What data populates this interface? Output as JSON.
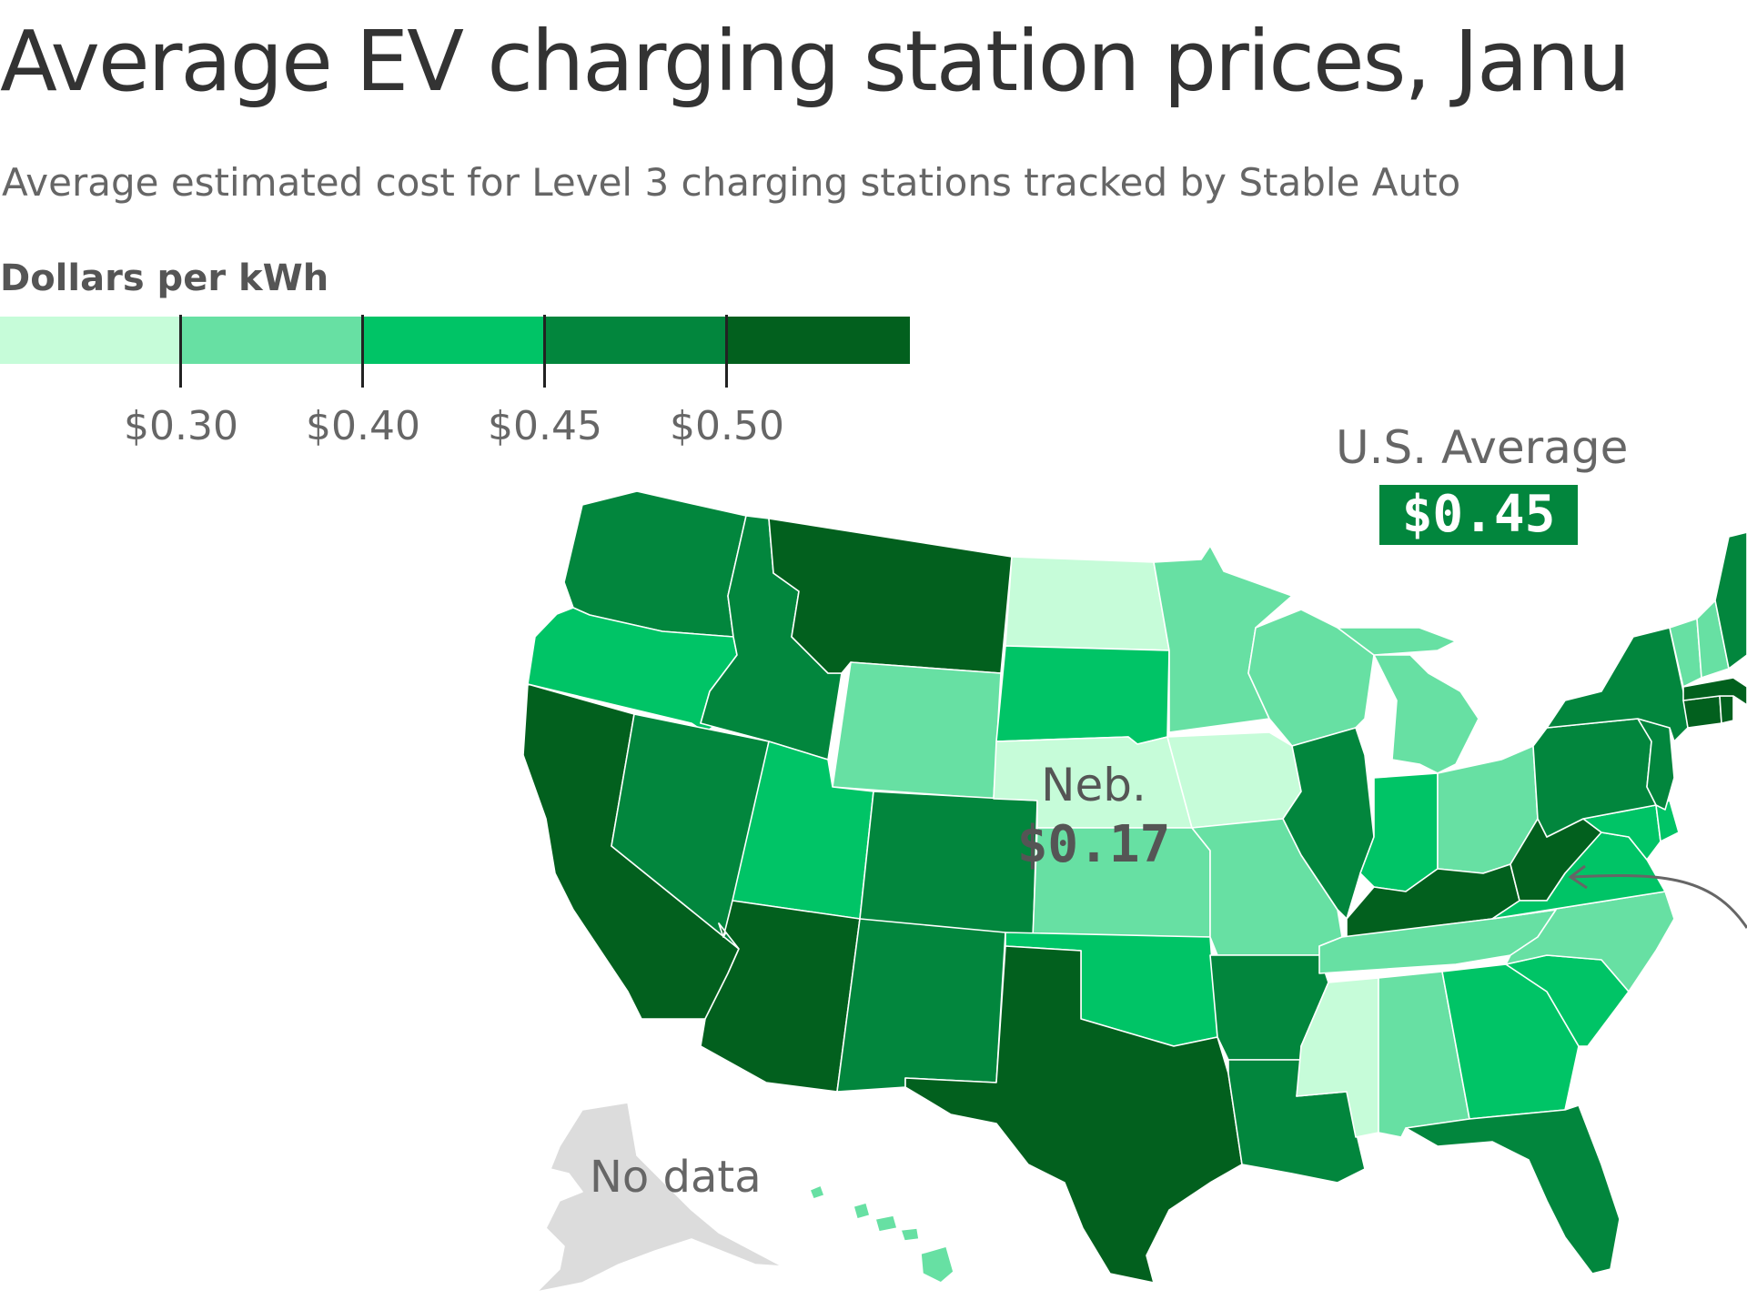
{
  "title": "Average EV charging station prices, Janu",
  "subtitle": "Average estimated cost for Level 3 charging stations tracked by Stable Auto",
  "legend": {
    "title": "Dollars per kWh",
    "colors": [
      "#c6fcd9",
      "#67e0a3",
      "#00c466",
      "#02863d",
      "#02601e"
    ],
    "thresholds": [
      "$0.30",
      "$0.40",
      "$0.45",
      "$0.50"
    ]
  },
  "us_average": {
    "label": "U.S. Average",
    "value": "$0.45"
  },
  "highlight": {
    "name": "Neb.",
    "value": "$0.17"
  },
  "no_data_label": "No data",
  "colors": {
    "no_data": "#dcdcdc",
    "text": "#333333",
    "muted": "#666666"
  },
  "states": {
    "WA": 3,
    "OR": 2,
    "CA": 4,
    "NV": 3,
    "ID": 3,
    "MT": 4,
    "WY": 1,
    "UT": 2,
    "AZ": 4,
    "CO": 3,
    "NM": 3,
    "ND": 0,
    "SD": 2,
    "NE": 0,
    "KS": 1,
    "OK": 2,
    "TX": 4,
    "MN": 1,
    "IA": 0,
    "MO": 1,
    "AR": 3,
    "LA": 3,
    "WI": 1,
    "IL": 3,
    "MI": 1,
    "IN": 2,
    "OH": 1,
    "KY": 4,
    "TN": 1,
    "MS": 0,
    "AL": 1,
    "GA": 2,
    "FL": 3,
    "SC": 2,
    "NC": 1,
    "VA": 2,
    "WV": 4,
    "MD": 2,
    "DE": 2,
    "PA": 3,
    "NJ": 3,
    "NY": 3,
    "CT": 4,
    "RI": 4,
    "MA": 4,
    "VT": 1,
    "NH": 1,
    "ME": 3,
    "HI": 1,
    "AK": null
  }
}
